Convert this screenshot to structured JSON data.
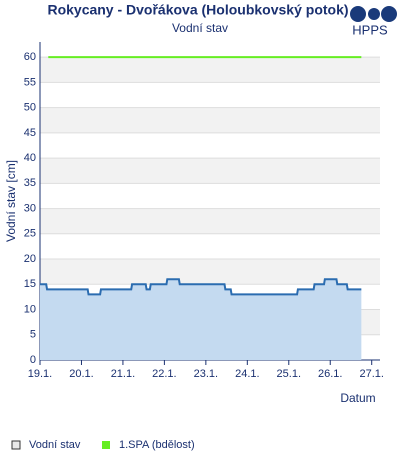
{
  "chart_data": {
    "type": "line",
    "title": "Rokycany - Dvořákova (Holoubkovský potok)",
    "subtitle": "Vodní stav",
    "logo": "HPPS",
    "y_label": "Vodní stav [cm]",
    "x_label": "Datum",
    "xlim": [
      19,
      27.2
    ],
    "xticks": [
      {
        "value": 19,
        "label": "19.1."
      },
      {
        "value": 20,
        "label": "20.1."
      },
      {
        "value": 21,
        "label": "21.1."
      },
      {
        "value": 22,
        "label": "22.1."
      },
      {
        "value": 23,
        "label": "23.1."
      },
      {
        "value": 24,
        "label": "24.1."
      },
      {
        "value": 25,
        "label": "25.1."
      },
      {
        "value": 26,
        "label": "26.1."
      },
      {
        "value": 27,
        "label": "27.1."
      }
    ],
    "ylim": [
      0,
      63
    ],
    "yticks": [
      0,
      5,
      10,
      15,
      20,
      25,
      30,
      35,
      40,
      45,
      50,
      55,
      60
    ],
    "grid": true,
    "series": [
      {
        "name": "Vodní stav",
        "color": "#2b6cb0",
        "fill": "#c4daf0",
        "x": [
          19.0,
          19.15,
          19.17,
          20.15,
          20.17,
          20.45,
          20.47,
          21.2,
          21.22,
          21.55,
          21.57,
          21.65,
          21.67,
          22.05,
          22.07,
          22.35,
          22.37,
          23.45,
          23.47,
          23.6,
          23.62,
          25.2,
          25.22,
          25.6,
          25.62,
          25.85,
          25.87,
          26.15,
          26.17,
          26.4,
          26.42,
          26.75
        ],
        "values": [
          15,
          15,
          14,
          14,
          13,
          13,
          14,
          14,
          15,
          15,
          14,
          14,
          15,
          15,
          16,
          16,
          15,
          15,
          14,
          14,
          13,
          13,
          14,
          14,
          15,
          15,
          16,
          16,
          15,
          15,
          14,
          14
        ]
      },
      {
        "name": "1.SPA (bdělost)",
        "color": "#66ee22",
        "x": [
          19.2,
          26.75
        ],
        "values": [
          60,
          60
        ]
      }
    ]
  }
}
